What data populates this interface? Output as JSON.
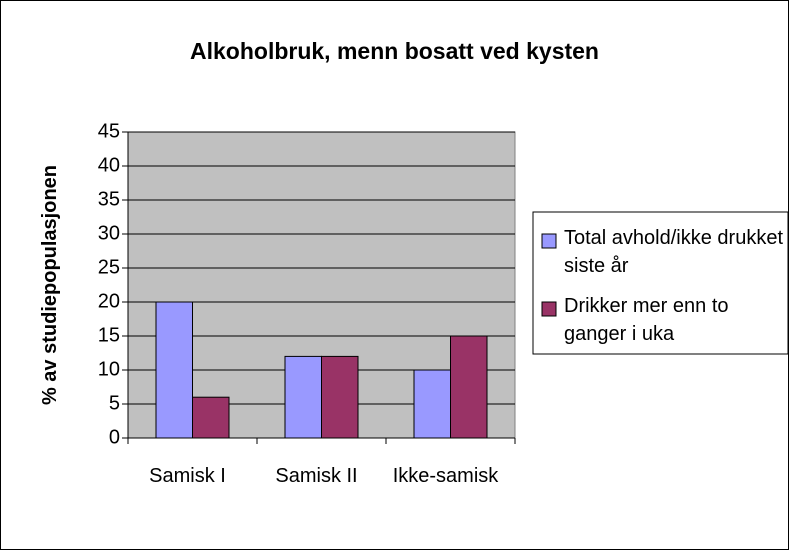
{
  "chart_data": {
    "type": "bar",
    "title": "Alkoholbruk, menn bosatt ved kysten",
    "y_label": "% av studiepopulasjonen",
    "categories": [
      "Samisk I",
      "Samisk II",
      "Ikke-samisk"
    ],
    "series": [
      {
        "name": "Total avhold/ikke drukket siste år",
        "color": "#9999ff",
        "values": [
          20,
          12,
          10
        ]
      },
      {
        "name": "Drikker mer enn to ganger i uka",
        "color": "#993366",
        "values": [
          6,
          12,
          15
        ]
      }
    ],
    "ylim": [
      0,
      45
    ],
    "yticks": [
      0,
      5,
      10,
      15,
      20,
      25,
      30,
      35,
      40,
      45
    ],
    "grid": true,
    "legend": "right",
    "plot_background": "#c0c0c0"
  }
}
